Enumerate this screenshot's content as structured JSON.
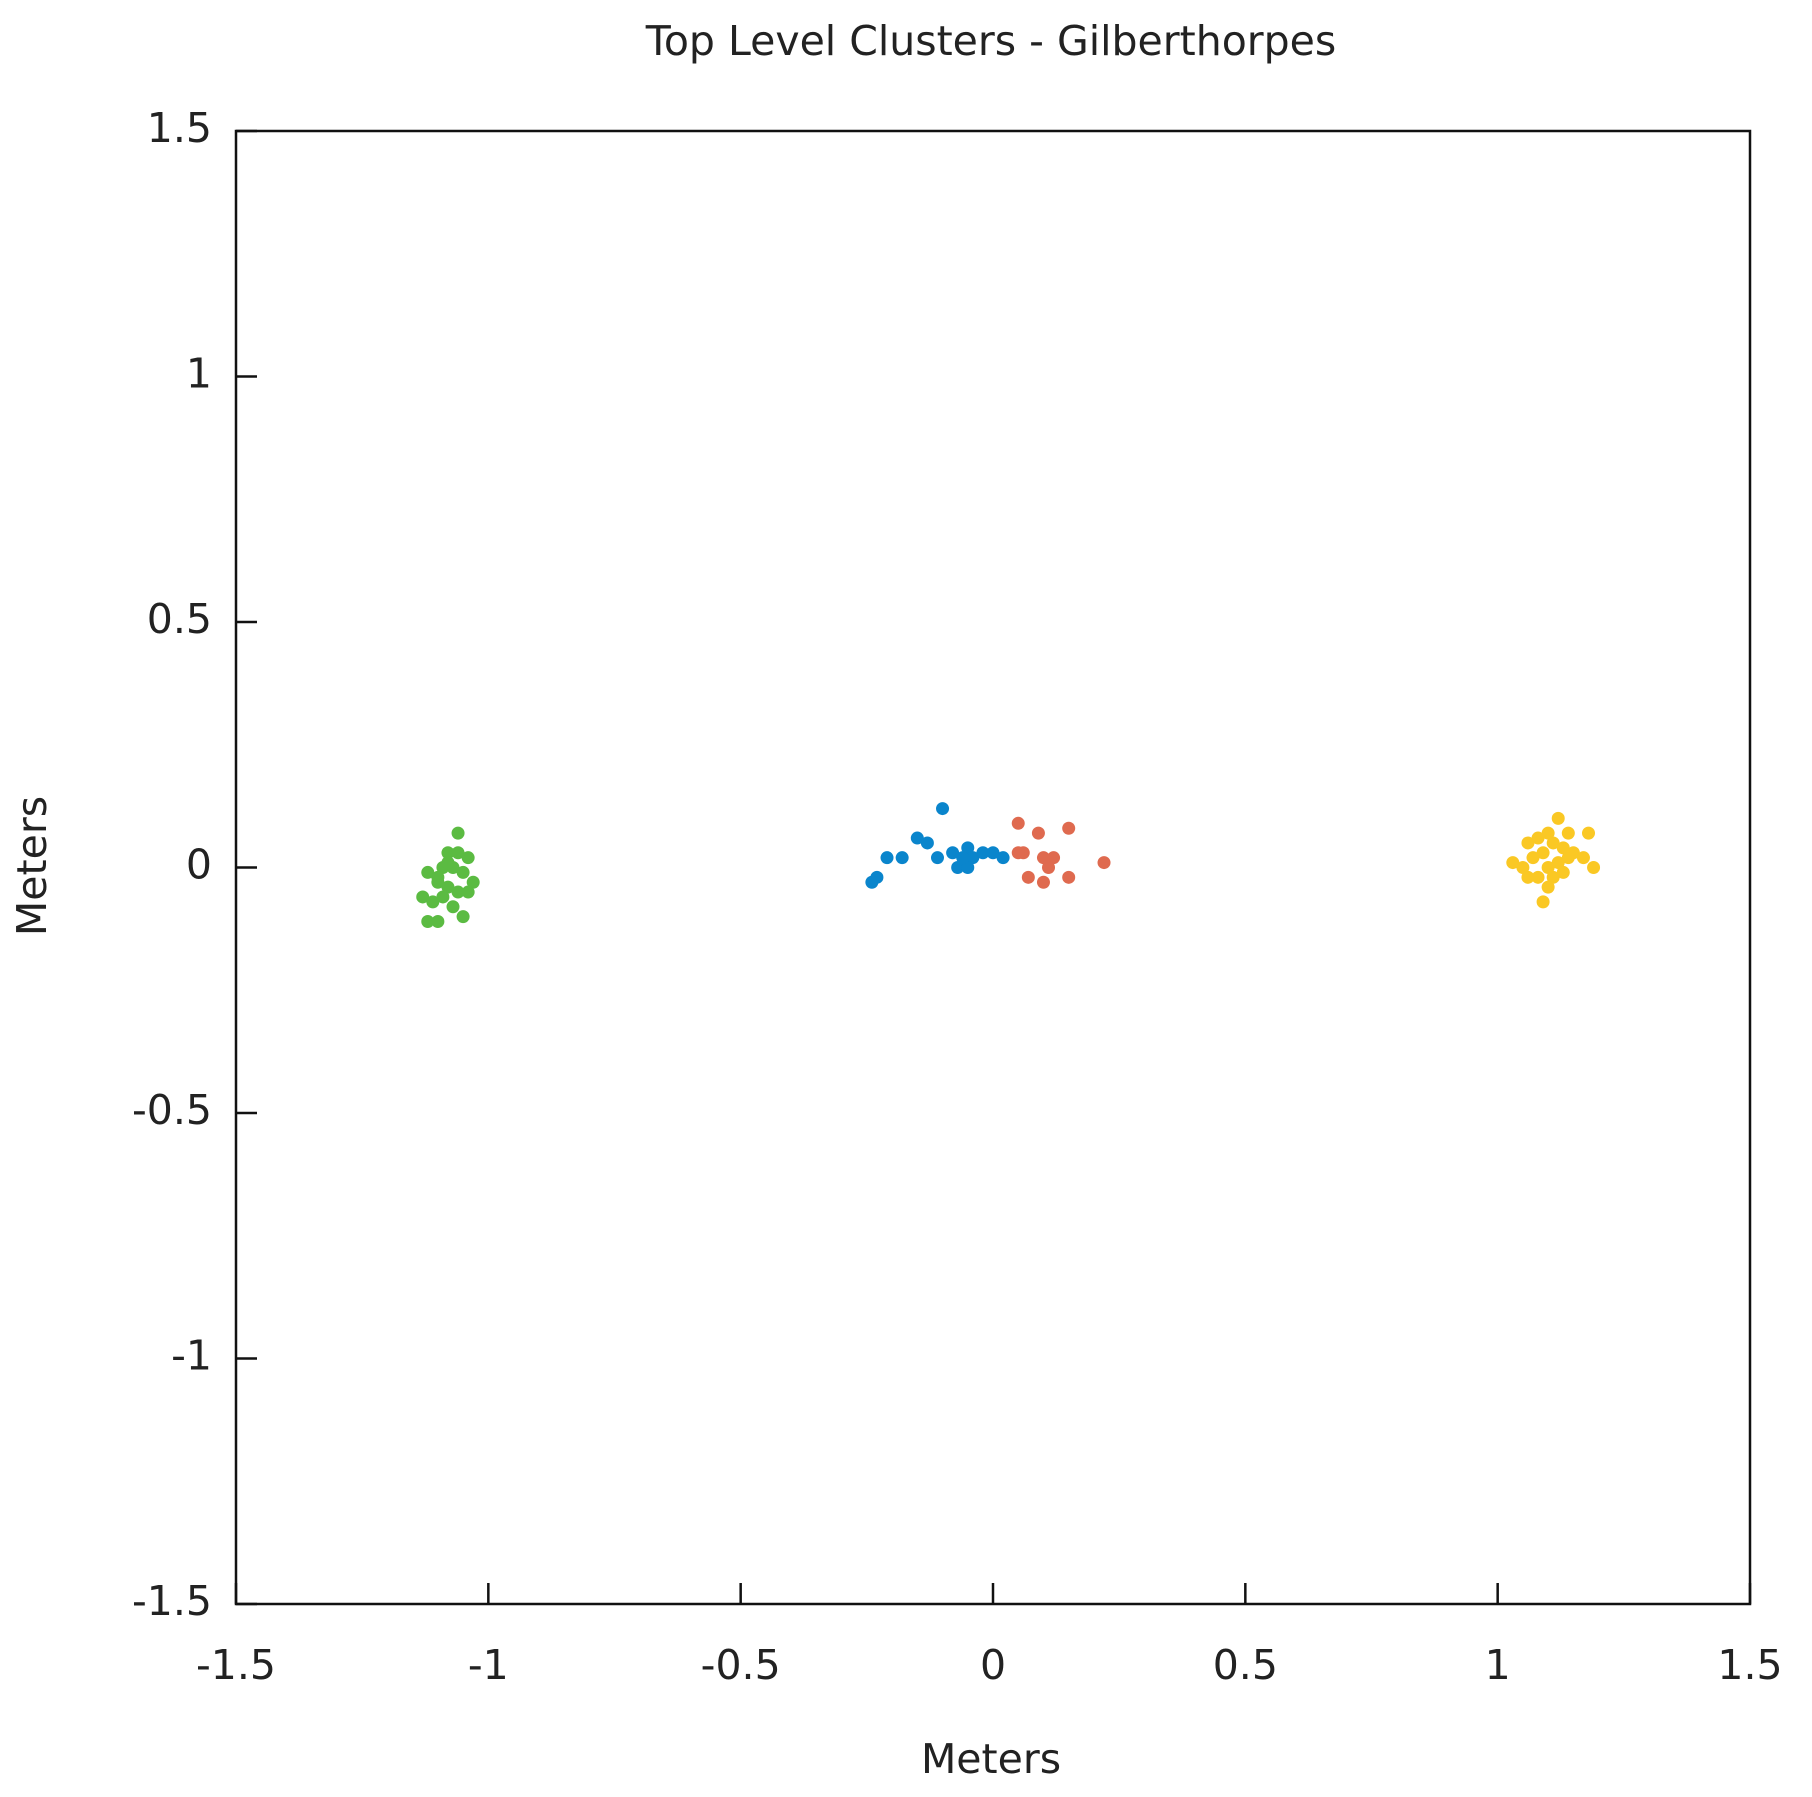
{
  "chart_data": {
    "type": "scatter",
    "title": "Top Level Clusters - Gilberthorpes",
    "x_label": "Meters",
    "y_label": "Meters",
    "xlim": [
      -1.5,
      1.5
    ],
    "ylim": [
      -1.5,
      1.5
    ],
    "xticks": [
      -1.5,
      -1,
      -0.5,
      0,
      0.5,
      1,
      1.5
    ],
    "yticks": [
      -1.5,
      -1,
      -0.5,
      0,
      0.5,
      1,
      1.5
    ],
    "grid": false,
    "series": [
      {
        "color": "#5bbb42",
        "x": [
          -1.06,
          -1.08,
          -1.06,
          -1.04,
          -1.12,
          -1.09,
          -1.07,
          -1.05,
          -1.03,
          -1.1,
          -1.08,
          -1.06,
          -1.13,
          -1.11,
          -1.09,
          -1.07,
          -1.12,
          -1.1,
          -1.05,
          -1.04,
          -1.08,
          -1.1
        ],
        "values": [
          0.07,
          0.03,
          0.03,
          0.02,
          -0.01,
          0.0,
          0.0,
          -0.01,
          -0.03,
          -0.03,
          -0.04,
          -0.05,
          -0.06,
          -0.07,
          -0.06,
          -0.08,
          -0.11,
          -0.11,
          -0.1,
          -0.05,
          0.01,
          -0.02
        ]
      },
      {
        "color": "#0a85cc",
        "x": [
          -0.1,
          -0.15,
          -0.13,
          -0.18,
          -0.21,
          -0.23,
          -0.24,
          -0.11,
          -0.08,
          -0.07,
          -0.05,
          -0.04,
          -0.05,
          -0.02,
          0.0,
          0.02,
          -0.06
        ],
        "values": [
          0.12,
          0.06,
          0.05,
          0.02,
          0.02,
          -0.02,
          -0.03,
          0.02,
          0.03,
          0.0,
          0.04,
          0.02,
          0.0,
          0.03,
          0.03,
          0.02,
          0.02
        ]
      },
      {
        "color": "#df6a4f",
        "x": [
          0.05,
          0.09,
          0.15,
          0.06,
          0.1,
          0.12,
          0.11,
          0.07,
          0.1,
          0.15,
          0.22,
          0.05
        ],
        "values": [
          0.09,
          0.07,
          0.08,
          0.03,
          0.02,
          0.02,
          0.0,
          -0.02,
          -0.03,
          -0.02,
          0.01,
          0.03
        ]
      },
      {
        "color": "#fac824",
        "x": [
          1.12,
          1.14,
          1.18,
          1.08,
          1.1,
          1.06,
          1.11,
          1.13,
          1.15,
          1.17,
          1.19,
          1.03,
          1.05,
          1.07,
          1.09,
          1.1,
          1.12,
          1.08,
          1.1,
          1.11,
          1.09,
          1.13,
          1.06,
          1.14
        ],
        "values": [
          0.1,
          0.07,
          0.07,
          0.06,
          0.07,
          0.05,
          0.05,
          0.04,
          0.03,
          0.02,
          0.0,
          0.01,
          0.0,
          0.02,
          0.03,
          0.0,
          0.01,
          -0.02,
          -0.04,
          -0.02,
          -0.07,
          -0.01,
          -0.02,
          0.02
        ]
      }
    ]
  }
}
